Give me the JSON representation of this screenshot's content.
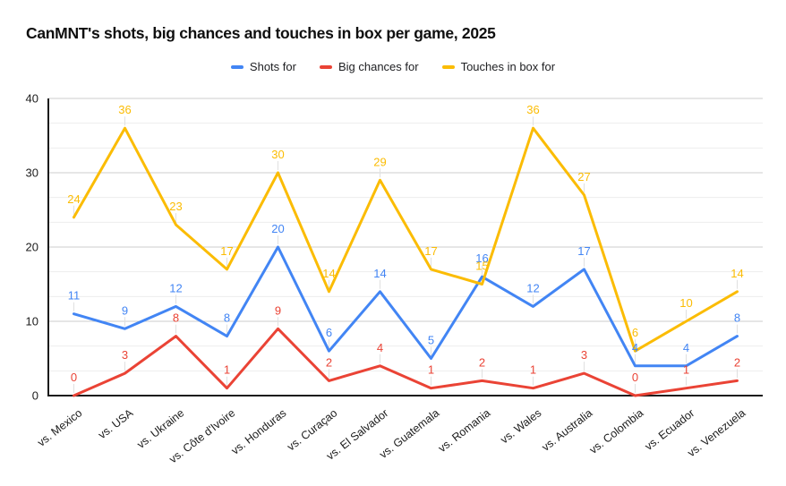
{
  "title": "CanMNT's shots, big chances and touches in box per game, 2025",
  "chart_data": {
    "type": "line",
    "title": "CanMNT's shots, big chances and touches in box per game, 2025",
    "categories": [
      "vs. Mexico",
      "vs. USA",
      "vs. Ukraine",
      "vs. Côte d'Ivoire",
      "vs. Honduras",
      "vs. Curaçao",
      "vs. El Salvador",
      "vs. Guatemala",
      "vs. Romania",
      "vs. Wales",
      "vs. Australia",
      "vs. Colombia",
      "vs. Ecuador",
      "vs. Venezuela"
    ],
    "series": [
      {
        "name": "Shots for",
        "color": "#4285F4",
        "values": [
          11,
          9,
          12,
          8,
          20,
          6,
          14,
          5,
          16,
          12,
          17,
          4,
          4,
          8
        ]
      },
      {
        "name": "Big chances for",
        "color": "#EA4335",
        "values": [
          0,
          3,
          8,
          1,
          9,
          2,
          4,
          1,
          2,
          1,
          3,
          0,
          1,
          2
        ]
      },
      {
        "name": "Touches in box for",
        "color": "#FBBC04",
        "values": [
          24,
          36,
          23,
          17,
          30,
          14,
          29,
          17,
          15,
          36,
          27,
          6,
          10,
          14
        ]
      }
    ],
    "xlabel": "",
    "ylabel": "",
    "ylim": [
      0,
      40
    ],
    "yticks": [
      0,
      10,
      20,
      30,
      40
    ],
    "grid": {
      "major": true,
      "minor": true,
      "minor_divisions_per_major": 3
    },
    "legend_position": "top",
    "data_labels": true
  },
  "colors": {
    "background": "#ffffff",
    "axis_line": "#1b1b1b",
    "major_gridline": "#cccccc",
    "minor_gridline": "#ededed",
    "label_stem": "#e0e0e0",
    "axis_text": "#1c1c1c",
    "title_text": "#0f0f0f",
    "legend_text": "#202124"
  }
}
